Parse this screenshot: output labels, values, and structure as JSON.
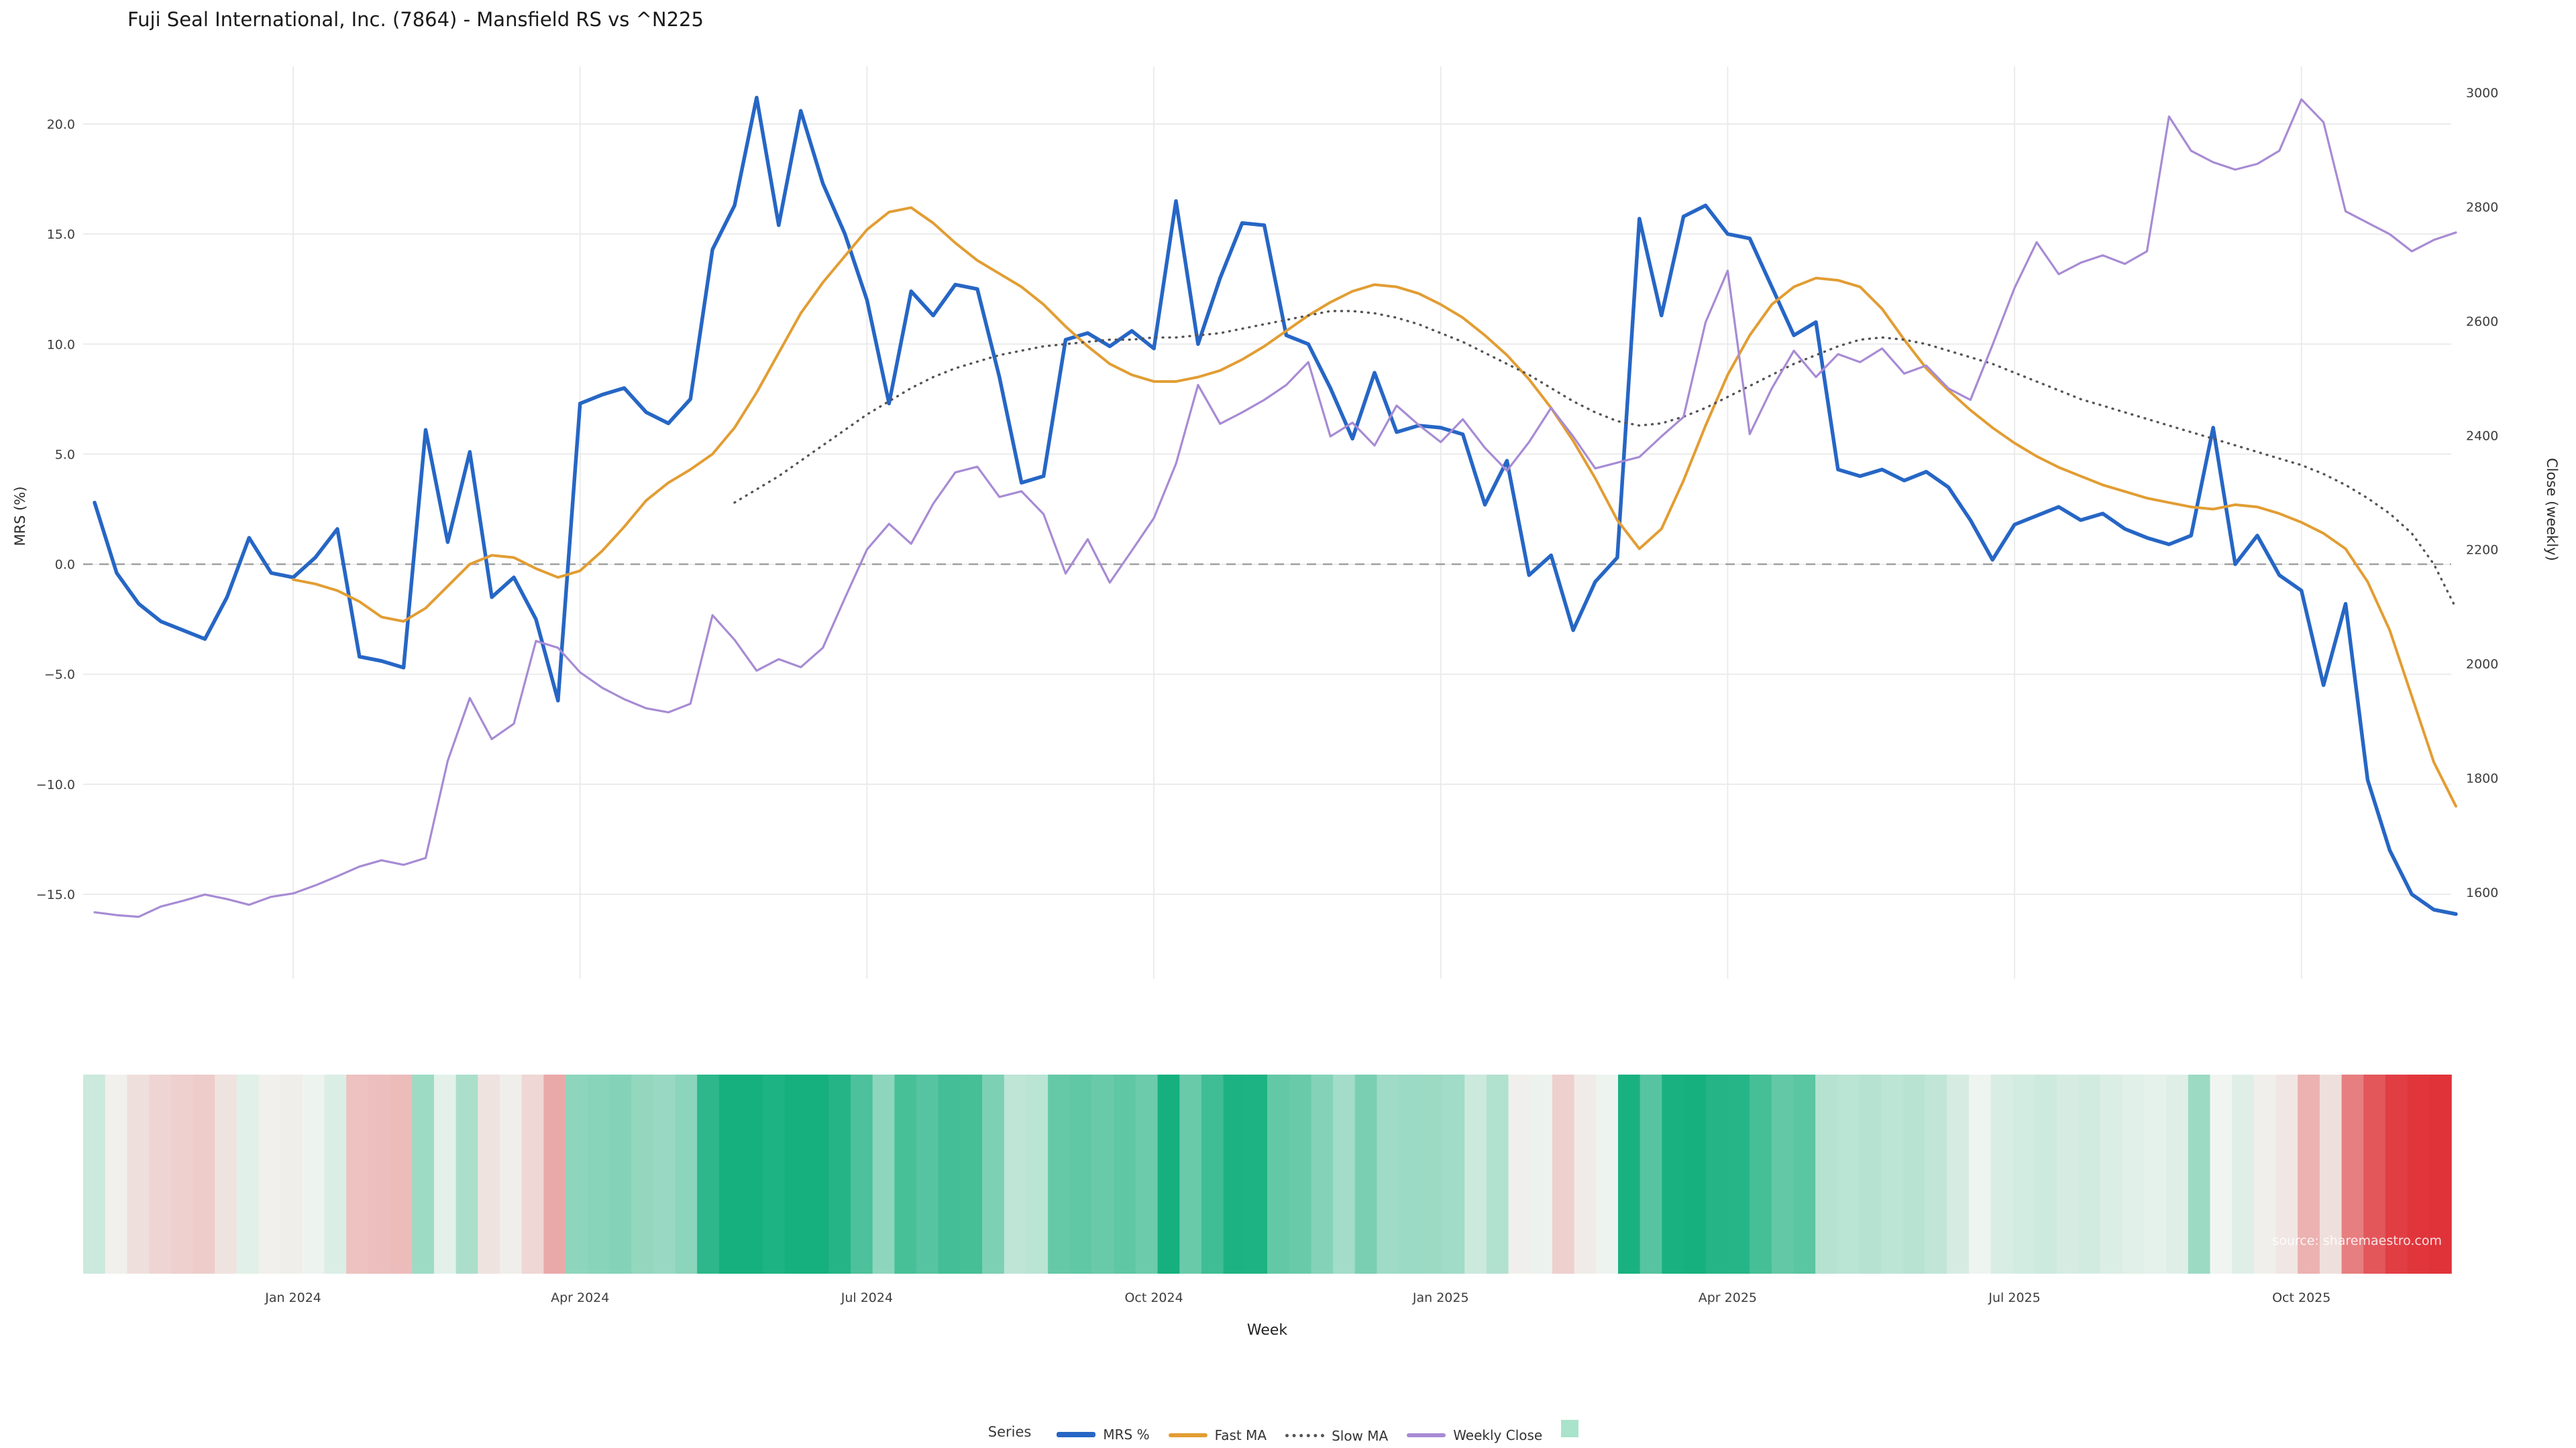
{
  "title": "Fuji Seal International, Inc. (7864) - Mansfield RS vs ^N225",
  "source": "source: sharemaestro.com",
  "legend": {
    "title": "Series",
    "items": [
      {
        "label": "MRS %",
        "swatch": "line",
        "thick": true,
        "color": "#2666c5"
      },
      {
        "label": "Fast MA",
        "swatch": "line",
        "thick": false,
        "color": "#e29d33"
      },
      {
        "label": "Slow MA",
        "swatch": "dotted",
        "color": "#555555"
      },
      {
        "label": "Weekly Close",
        "swatch": "line",
        "thick": false,
        "color": "#a78bd4"
      },
      {
        "label": "",
        "swatch": "square",
        "color": "#a9e3cc"
      }
    ]
  },
  "chart_data": {
    "type": "line",
    "title": "Fuji Seal International, Inc. (7864) - Mansfield RS vs ^N225",
    "n_points": 108,
    "x_unit": "week",
    "grid": true,
    "legend_position": "bottom-center",
    "colors": {
      "grid": "#ebebeb",
      "zero_line": "#a0a0a0",
      "background": "#ffffff"
    },
    "axes": {
      "left": {
        "label": "MRS (%)",
        "lim": [
          -19,
          23
        ],
        "ticks": [
          {
            "label": "20.0",
            "v": 20
          },
          {
            "label": "15.0",
            "v": 15
          },
          {
            "label": "10.0",
            "v": 10
          },
          {
            "label": "5.0",
            "v": 5
          },
          {
            "label": "0.0",
            "v": 0
          },
          {
            "label": "−5.0",
            "v": -5
          },
          {
            "label": "−10.0",
            "v": -10
          },
          {
            "label": "−15.0",
            "v": -15
          }
        ]
      },
      "right": {
        "label": "Close (weekly)",
        "lim": [
          1450,
          3050
        ],
        "ticks": [
          {
            "label": "3000",
            "v": 3000
          },
          {
            "label": "2800",
            "v": 2800
          },
          {
            "label": "2600",
            "v": 2600
          },
          {
            "label": "2400",
            "v": 2400
          },
          {
            "label": "2200",
            "v": 2200
          },
          {
            "label": "2000",
            "v": 2000
          },
          {
            "label": "1800",
            "v": 1800
          },
          {
            "label": "1600",
            "v": 1600
          }
        ]
      },
      "x": {
        "label": "Week",
        "ticks": [
          {
            "label": "Jan 2024",
            "i": 9
          },
          {
            "label": "Apr 2024",
            "i": 22
          },
          {
            "label": "Jul 2024",
            "i": 35
          },
          {
            "label": "Oct 2024",
            "i": 48
          },
          {
            "label": "Jan 2025",
            "i": 61
          },
          {
            "label": "Apr 2025",
            "i": 74
          },
          {
            "label": "Jul 2025",
            "i": 87
          },
          {
            "label": "Oct 2025",
            "i": 100
          }
        ]
      }
    },
    "zero_reference_line": {
      "axis": "left",
      "value": 0,
      "style": "dashed"
    },
    "series": [
      {
        "name": "MRS %",
        "axis": "left",
        "color": "#2666c5",
        "style": "solid",
        "width": 5.5,
        "values": [
          2.8,
          -0.4,
          -1.8,
          -2.6,
          -3.0,
          -3.4,
          -1.5,
          1.2,
          -0.4,
          -0.6,
          0.3,
          1.6,
          -4.2,
          -4.4,
          -4.7,
          6.1,
          1.0,
          5.1,
          -1.5,
          -0.6,
          -2.5,
          -6.2,
          7.3,
          7.7,
          8.0,
          6.9,
          6.4,
          7.5,
          14.3,
          16.3,
          21.2,
          15.4,
          20.6,
          17.3,
          15.0,
          12.0,
          7.3,
          12.4,
          11.3,
          12.7,
          12.5,
          8.5,
          3.7,
          4.0,
          10.2,
          10.5,
          9.9,
          10.6,
          9.8,
          16.5,
          10.0,
          13.0,
          15.5,
          15.4,
          10.4,
          10.0,
          8.0,
          5.7,
          8.7,
          6.0,
          6.3,
          6.2,
          5.9,
          2.7,
          4.7,
          -0.5,
          0.4,
          -3.0,
          -0.8,
          0.3,
          15.7,
          11.3,
          15.8,
          16.3,
          15.0,
          14.8,
          12.6,
          10.4,
          11.0,
          4.3,
          4.0,
          4.3,
          3.8,
          4.2,
          3.5,
          2.0,
          0.2,
          1.8,
          2.2,
          2.6,
          2.0,
          2.3,
          1.6,
          1.2,
          0.9,
          1.3,
          6.2,
          0.0,
          1.3,
          -0.5,
          -1.2,
          -5.5,
          -1.8,
          -9.8,
          -13.0,
          -15.0,
          -15.7,
          -15.9
        ]
      },
      {
        "name": "Fast MA",
        "axis": "left",
        "color": "#e29d33",
        "style": "solid",
        "width": 4,
        "values": [
          null,
          null,
          null,
          null,
          null,
          null,
          null,
          null,
          null,
          -0.7,
          -0.9,
          -1.2,
          -1.7,
          -2.4,
          -2.6,
          -2.0,
          -1.0,
          0.0,
          0.4,
          0.3,
          -0.2,
          -0.6,
          -0.3,
          0.6,
          1.7,
          2.9,
          3.7,
          4.3,
          5.0,
          6.2,
          7.8,
          9.6,
          11.4,
          12.8,
          14.0,
          15.2,
          16.0,
          16.2,
          15.5,
          14.6,
          13.8,
          13.2,
          12.6,
          11.8,
          10.8,
          9.9,
          9.1,
          8.6,
          8.3,
          8.3,
          8.5,
          8.8,
          9.3,
          9.9,
          10.6,
          11.3,
          11.9,
          12.4,
          12.7,
          12.6,
          12.3,
          11.8,
          11.2,
          10.4,
          9.5,
          8.4,
          7.1,
          5.6,
          3.9,
          2.0,
          0.7,
          1.6,
          3.8,
          6.3,
          8.6,
          10.4,
          11.8,
          12.6,
          13.0,
          12.9,
          12.6,
          11.6,
          10.2,
          8.9,
          7.9,
          7.0,
          6.2,
          5.5,
          4.9,
          4.4,
          4.0,
          3.6,
          3.3,
          3.0,
          2.8,
          2.6,
          2.5,
          2.7,
          2.6,
          2.3,
          1.9,
          1.4,
          0.7,
          -0.8,
          -3.0,
          -6.0,
          -9.0,
          -11.0
        ]
      },
      {
        "name": "Slow MA",
        "axis": "left",
        "color": "#555555",
        "style": "dotted",
        "width": 3.4,
        "values": [
          null,
          null,
          null,
          null,
          null,
          null,
          null,
          null,
          null,
          null,
          null,
          null,
          null,
          null,
          null,
          null,
          null,
          null,
          null,
          null,
          null,
          null,
          null,
          null,
          null,
          null,
          null,
          null,
          null,
          2.8,
          3.4,
          4.0,
          4.7,
          5.4,
          6.1,
          6.8,
          7.4,
          8.0,
          8.5,
          8.9,
          9.2,
          9.5,
          9.7,
          9.9,
          10.0,
          10.1,
          10.2,
          10.2,
          10.3,
          10.3,
          10.4,
          10.5,
          10.7,
          10.9,
          11.1,
          11.3,
          11.5,
          11.5,
          11.4,
          11.2,
          10.9,
          10.5,
          10.1,
          9.6,
          9.1,
          8.6,
          8.0,
          7.4,
          6.9,
          6.5,
          6.3,
          6.4,
          6.7,
          7.1,
          7.6,
          8.1,
          8.6,
          9.1,
          9.5,
          9.9,
          10.2,
          10.3,
          10.2,
          10.0,
          9.7,
          9.4,
          9.1,
          8.7,
          8.3,
          7.9,
          7.5,
          7.2,
          6.9,
          6.6,
          6.3,
          6.0,
          5.7,
          5.4,
          5.1,
          4.8,
          4.5,
          4.1,
          3.6,
          3.0,
          2.3,
          1.4,
          0.0,
          -2.0
        ]
      },
      {
        "name": "Weekly Close",
        "axis": "right",
        "color": "#a78bd4",
        "style": "solid",
        "width": 3.2,
        "values": [
          1565,
          1560,
          1557,
          1575,
          1585,
          1596,
          1588,
          1578,
          1592,
          1598,
          1612,
          1628,
          1645,
          1656,
          1648,
          1660,
          1830,
          1940,
          1868,
          1895,
          2040,
          2028,
          1985,
          1958,
          1938,
          1922,
          1915,
          1930,
          2085,
          2042,
          1988,
          2008,
          1994,
          2028,
          2115,
          2200,
          2245,
          2210,
          2280,
          2335,
          2345,
          2292,
          2302,
          2262,
          2158,
          2218,
          2142,
          2198,
          2255,
          2350,
          2488,
          2420,
          2440,
          2462,
          2488,
          2528,
          2398,
          2422,
          2382,
          2452,
          2418,
          2388,
          2428,
          2378,
          2338,
          2388,
          2448,
          2398,
          2342,
          2352,
          2362,
          2398,
          2432,
          2598,
          2688,
          2402,
          2482,
          2548,
          2502,
          2542,
          2528,
          2552,
          2508,
          2522,
          2482,
          2462,
          2558,
          2658,
          2738,
          2682,
          2702,
          2715,
          2700,
          2722,
          2958,
          2898,
          2878,
          2865,
          2875,
          2898,
          2988,
          2948,
          2792,
          2772,
          2752,
          2722,
          2742,
          2755
        ]
      }
    ],
    "heatmap": {
      "description": "bottom strip, one cell per week, colored by MRS % value",
      "from_series": "MRS %",
      "colormap": {
        "neg": "#e03238",
        "zero": "#f1f5f1",
        "pos": "#16b07e",
        "scale_max": 16
      }
    }
  }
}
